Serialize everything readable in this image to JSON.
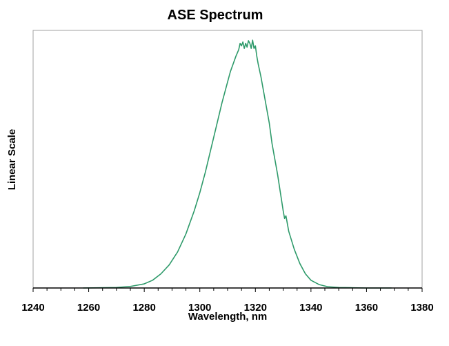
{
  "chart_data": {
    "type": "line",
    "title": "ASE Spectrum",
    "xlabel": "Wavelength, nm",
    "ylabel": "Linear Scale",
    "xlim": [
      1240,
      1380
    ],
    "ylim": [
      0,
      1.0
    ],
    "x_ticks": [
      1240,
      1260,
      1280,
      1300,
      1320,
      1340,
      1360,
      1380
    ],
    "x_minor_step": 5,
    "grid": false,
    "legend": "none",
    "y_tick_labels": false,
    "series": [
      {
        "color": "#2e9a6a",
        "x": [
          1258,
          1270,
          1275,
          1280,
          1283,
          1286,
          1289,
          1292,
          1295,
          1298,
          1300,
          1302,
          1304,
          1306,
          1308,
          1310,
          1311,
          1312,
          1313,
          1314,
          1314.5,
          1315,
          1315.5,
          1316,
          1316.5,
          1317,
          1317.5,
          1318,
          1318.5,
          1319,
          1319.5,
          1320,
          1320.5,
          1321,
          1322,
          1323,
          1324,
          1325,
          1326,
          1327,
          1328,
          1329,
          1330,
          1330.5,
          1331,
          1332,
          1334,
          1336,
          1338,
          1340,
          1343,
          1346,
          1350,
          1355,
          1360,
          1369
        ],
        "y": [
          0.0,
          0.002,
          0.006,
          0.016,
          0.03,
          0.055,
          0.09,
          0.14,
          0.21,
          0.3,
          0.37,
          0.45,
          0.54,
          0.63,
          0.72,
          0.8,
          0.84,
          0.87,
          0.9,
          0.925,
          0.95,
          0.94,
          0.955,
          0.93,
          0.95,
          0.935,
          0.96,
          0.95,
          0.93,
          0.962,
          0.93,
          0.94,
          0.9,
          0.87,
          0.82,
          0.76,
          0.7,
          0.64,
          0.56,
          0.5,
          0.44,
          0.37,
          0.3,
          0.27,
          0.28,
          0.22,
          0.15,
          0.095,
          0.055,
          0.03,
          0.013,
          0.005,
          0.002,
          0.001,
          0.0,
          0.0
        ]
      }
    ]
  }
}
